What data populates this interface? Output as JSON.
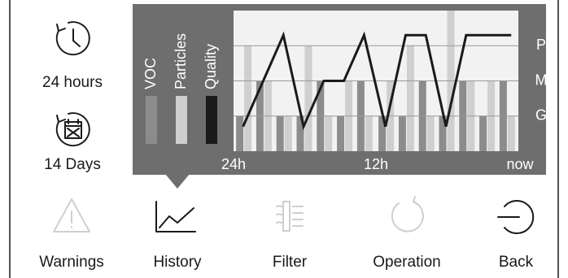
{
  "sidebar": {
    "items": [
      {
        "label": "24 hours"
      },
      {
        "label": "14 Days"
      }
    ]
  },
  "chart_data": {
    "type": "combo",
    "xlim": [
      24,
      0
    ],
    "xticks": [
      {
        "value": 24,
        "label": "24h"
      },
      {
        "value": 12,
        "label": "12h"
      },
      {
        "value": 0,
        "label": "now"
      }
    ],
    "ylim": [
      0,
      4
    ],
    "yticks": [
      {
        "value": 1,
        "label": "G"
      },
      {
        "value": 2,
        "label": "M"
      },
      {
        "value": 3,
        "label": "P"
      }
    ],
    "grid": true,
    "series": [
      {
        "name": "VOC",
        "type": "bar",
        "color": "#8c8c8c",
        "x": [
          23.1,
          21.4,
          19.7,
          18,
          16.3,
          14.6,
          12.9,
          11.1,
          9.4,
          7.7,
          6,
          4.3,
          2.6,
          0.9
        ],
        "values": [
          1,
          2,
          1,
          1,
          2,
          1,
          2,
          1,
          1,
          2,
          1,
          2,
          1,
          2
        ]
      },
      {
        "name": "Particles",
        "type": "bar",
        "color": "#cfcfcf",
        "x": [
          23.1,
          21.4,
          19.7,
          18,
          16.3,
          14.6,
          12.9,
          11.1,
          9.4,
          7.7,
          6,
          4.3,
          2.6,
          0.9
        ],
        "values": [
          3,
          2,
          1,
          3,
          1,
          2,
          1,
          2,
          3,
          1,
          4,
          2,
          2,
          1
        ]
      },
      {
        "name": "Quality",
        "type": "line",
        "color": "#1a1a1a",
        "x": [
          23.2,
          19.8,
          18.1,
          16.4,
          14.7,
          13,
          11.2,
          9.5,
          7.8,
          6.1,
          4.4,
          0.6
        ],
        "values": [
          0.7,
          3.3,
          0.7,
          2,
          2,
          3.3,
          0.7,
          3.3,
          3.3,
          0.7,
          3.3,
          3.3
        ]
      }
    ]
  },
  "menu": {
    "items": [
      {
        "label": "Warnings"
      },
      {
        "label": "History"
      },
      {
        "label": "Filter"
      },
      {
        "label": "Operation"
      },
      {
        "label": "Back"
      }
    ]
  }
}
